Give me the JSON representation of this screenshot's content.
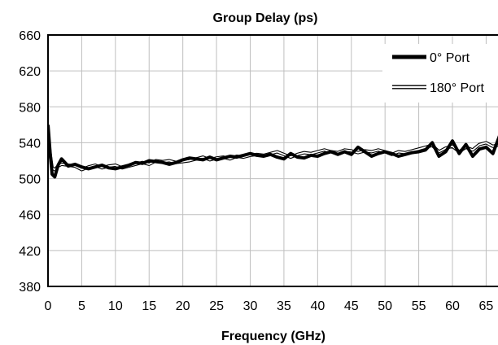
{
  "chart_data": {
    "type": "line",
    "title": "Group Delay (ps)",
    "xlabel": "Frequency (GHz)",
    "ylabel": "",
    "xlim": [
      0,
      67
    ],
    "ylim": [
      380,
      660
    ],
    "xticks": [
      0,
      5,
      10,
      15,
      20,
      25,
      30,
      35,
      40,
      45,
      50,
      55,
      60,
      65
    ],
    "yticks": [
      380,
      420,
      460,
      500,
      540,
      580,
      620,
      660
    ],
    "grid": true,
    "legend_position": "top-right",
    "series": [
      {
        "name": "0° Port",
        "style": "thick-black",
        "x": [
          0,
          0.3,
          0.6,
          1,
          1.5,
          2,
          3,
          4,
          5,
          6,
          7,
          8,
          9,
          10,
          11,
          12,
          13,
          14,
          15,
          16,
          17,
          18,
          19,
          20,
          21,
          22,
          23,
          24,
          25,
          26,
          27,
          28,
          29,
          30,
          31,
          32,
          33,
          34,
          35,
          36,
          37,
          38,
          39,
          40,
          41,
          42,
          43,
          44,
          45,
          46,
          47,
          48,
          49,
          50,
          51,
          52,
          53,
          54,
          55,
          56,
          57,
          58,
          59,
          60,
          61,
          62,
          63,
          64,
          65,
          66,
          67
        ],
        "y": [
          560,
          530,
          505,
          502,
          515,
          522,
          514,
          516,
          513,
          511,
          513,
          515,
          512,
          511,
          513,
          515,
          518,
          517,
          520,
          519,
          518,
          516,
          518,
          521,
          523,
          522,
          521,
          524,
          521,
          523,
          525,
          524,
          526,
          528,
          526,
          525,
          527,
          524,
          522,
          528,
          524,
          523,
          526,
          525,
          528,
          530,
          527,
          530,
          527,
          535,
          530,
          525,
          528,
          530,
          528,
          525,
          527,
          529,
          530,
          532,
          540,
          525,
          530,
          542,
          528,
          538,
          525,
          533,
          535,
          528,
          548
        ]
      },
      {
        "name": "180° Port",
        "style": "double-outline",
        "x": [
          0,
          0.3,
          0.6,
          1,
          1.5,
          2,
          3,
          4,
          5,
          6,
          7,
          8,
          9,
          10,
          11,
          12,
          13,
          14,
          15,
          16,
          17,
          18,
          19,
          20,
          21,
          22,
          23,
          24,
          25,
          26,
          27,
          28,
          29,
          30,
          31,
          32,
          33,
          34,
          35,
          36,
          37,
          38,
          39,
          40,
          41,
          42,
          43,
          44,
          45,
          46,
          47,
          48,
          49,
          50,
          51,
          52,
          53,
          54,
          55,
          56,
          57,
          58,
          59,
          60,
          61,
          62,
          63,
          64,
          65,
          66,
          67
        ],
        "y": [
          552,
          528,
          512,
          510,
          514,
          516,
          515,
          514,
          510,
          513,
          515,
          512,
          514,
          515,
          512,
          514,
          516,
          518,
          516,
          520,
          519,
          520,
          518,
          519,
          520,
          522,
          524,
          521,
          523,
          524,
          522,
          525,
          524,
          526,
          527,
          526,
          528,
          530,
          527,
          524,
          527,
          529,
          528,
          530,
          532,
          530,
          529,
          532,
          531,
          529,
          531,
          530,
          532,
          530,
          527,
          530,
          529,
          531,
          533,
          535,
          537,
          530,
          534,
          536,
          530,
          535,
          532,
          538,
          540,
          536,
          538
        ]
      }
    ]
  }
}
